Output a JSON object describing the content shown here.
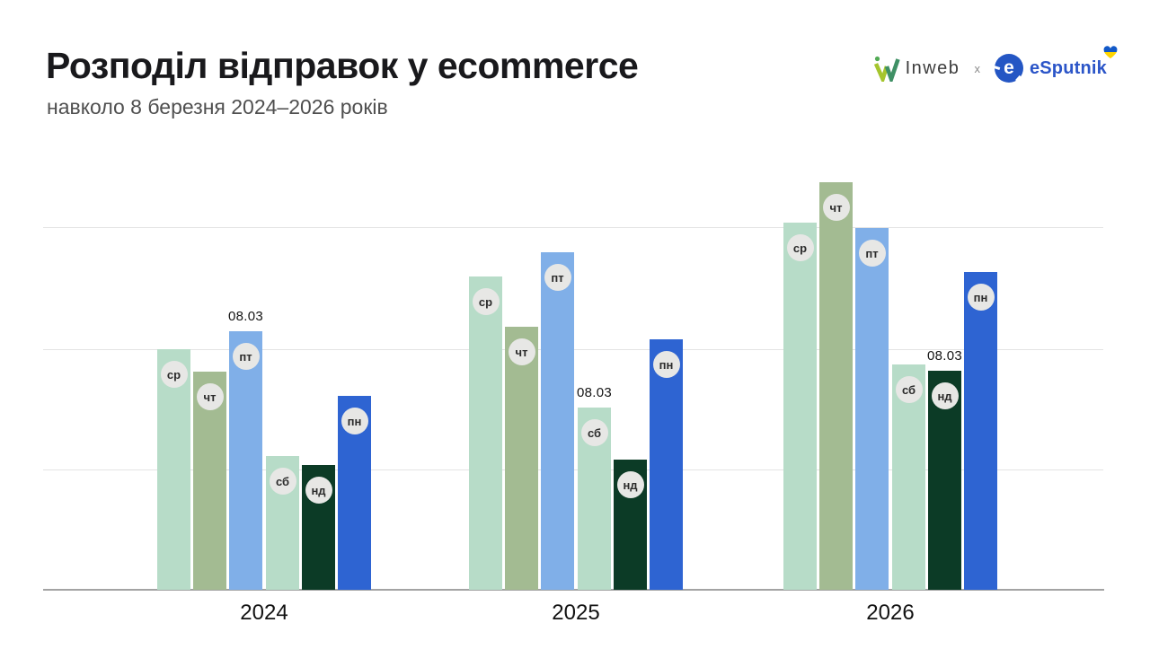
{
  "header": {
    "title": "Розподіл відправок у ecommerce",
    "subtitle": "навколо 8 березня 2024–2026 років",
    "partners": {
      "inweb_label": "Inweb",
      "separator": "x",
      "esputnik_label": "eSputnik"
    }
  },
  "chart_data": {
    "type": "bar",
    "title": "Розподіл відправок у ecommerce",
    "subtitle": "навколо 8 березня 2024–2026 років",
    "unit": "relative volume, no y-axis labels shown; max bar = 100",
    "categories": [
      "2024",
      "2025",
      "2026"
    ],
    "bar_labels": [
      "ср",
      "чт",
      "пт",
      "сб",
      "нд",
      "пн"
    ],
    "series": [
      {
        "name": "2024",
        "values": [
          59.0,
          53.5,
          63.4,
          32.8,
          30.6,
          47.6
        ],
        "march8_index": 2,
        "march8_day": "пт"
      },
      {
        "name": "2025",
        "values": [
          76.9,
          64.5,
          82.8,
          44.7,
          31.9,
          61.5
        ],
        "march8_index": 3,
        "march8_day": "сб"
      },
      {
        "name": "2026",
        "values": [
          90.1,
          100.0,
          88.8,
          55.3,
          53.7,
          78.0
        ],
        "march8_index": 4,
        "march8_day": "нд"
      }
    ],
    "annotation_label": "08.03",
    "gridlines": [
      29.5,
      59.0,
      89.0
    ],
    "ylim": [
      0,
      113
    ],
    "legend": "none",
    "grid": "horizontal",
    "bar_colors": {
      "ср": "#b7dcc8",
      "чт": "#a3bb92",
      "пт": "#80afe8",
      "сб": "#b7dcc8",
      "нд": "#0c3b26",
      "пн": "#2e64d2"
    },
    "badge_bg": "#e7e7e5"
  },
  "brand_colors": {
    "esputnik_blue": "#2456c4",
    "inweb_green_light": "#a5c52d",
    "inweb_green_dark": "#3f9065",
    "flag_blue": "#1259c8",
    "flag_yellow": "#ffd500"
  }
}
